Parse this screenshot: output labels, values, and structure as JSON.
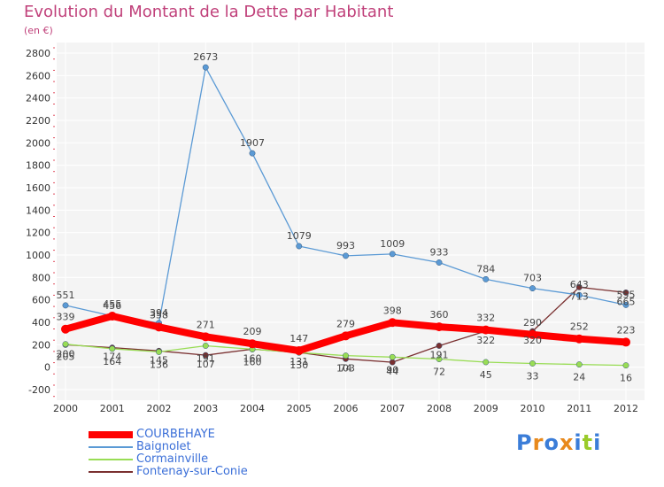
{
  "header": {
    "title": "Evolution du Montant de la Dette par Habitant",
    "unit": "(en €)"
  },
  "logo": {
    "text": "Proxiti",
    "letters": [
      "P",
      "r",
      "o",
      "x",
      "i",
      "t",
      "i"
    ],
    "colors": [
      "#3b7dd8",
      "#e8891c",
      "#3b7dd8",
      "#e8891c",
      "#3b7dd8",
      "#9acb2a",
      "#3b7dd8"
    ]
  },
  "chart_data": {
    "type": "line",
    "title": "Evolution du Montant de la Dette par Habitant",
    "subtitle": "(en €)",
    "x": [
      "2000",
      "2001",
      "2002",
      "2003",
      "2004",
      "2005",
      "2006",
      "2007",
      "2008",
      "2009",
      "2010",
      "2011",
      "2012"
    ],
    "ylim": [
      -200,
      2800
    ],
    "yticks": [
      -200,
      0,
      200,
      400,
      600,
      800,
      1000,
      1200,
      1400,
      1600,
      1800,
      2000,
      2200,
      2400,
      2600,
      2800
    ],
    "grid": true,
    "legend_position": "bottom-left",
    "series": [
      {
        "name": "COURBEHAYE",
        "values": [
          339,
          455,
          358,
          271,
          209,
          147,
          279,
          398,
          360,
          332,
          290,
          252,
          223
        ],
        "labels": [
          "339",
          "455",
          "358",
          "271",
          "209",
          "147",
          "279",
          "398",
          "360",
          "332",
          "290",
          "252",
          "223"
        ],
        "color": "#ff0000",
        "width": 8
      },
      {
        "name": "Baignolet",
        "values": [
          551,
          456,
          394,
          2673,
          1907,
          1079,
          993,
          1009,
          933,
          784,
          703,
          643,
          555
        ],
        "labels": [
          "551",
          "456",
          "394",
          "2673",
          "1907",
          "1079",
          "993",
          "1009",
          "933",
          "784",
          "703",
          "643",
          "555"
        ],
        "color": "#5b9ad5",
        "width": 1.3
      },
      {
        "name": "Cormainville",
        "values": [
          205,
          164,
          136,
          191,
          160,
          130,
          103,
          90,
          72,
          45,
          33,
          24,
          16
        ],
        "labels": [
          "205",
          "164",
          "136",
          "191",
          "160",
          "130",
          "103",
          "90",
          "72",
          "45",
          "33",
          "24",
          "16"
        ],
        "color": "#99dd55",
        "width": 1.3
      },
      {
        "name": "Fontenay-sur-Conie",
        "values": [
          200,
          174,
          145,
          107,
          160,
          131,
          74,
          44,
          191,
          322,
          320,
          713,
          665
        ],
        "labels": [
          "200",
          "174",
          "145",
          "107",
          "160",
          "131",
          "74",
          "44",
          "191",
          "322",
          "320",
          "713",
          "665"
        ],
        "color": "#7a3030",
        "width": 1.3
      }
    ]
  }
}
